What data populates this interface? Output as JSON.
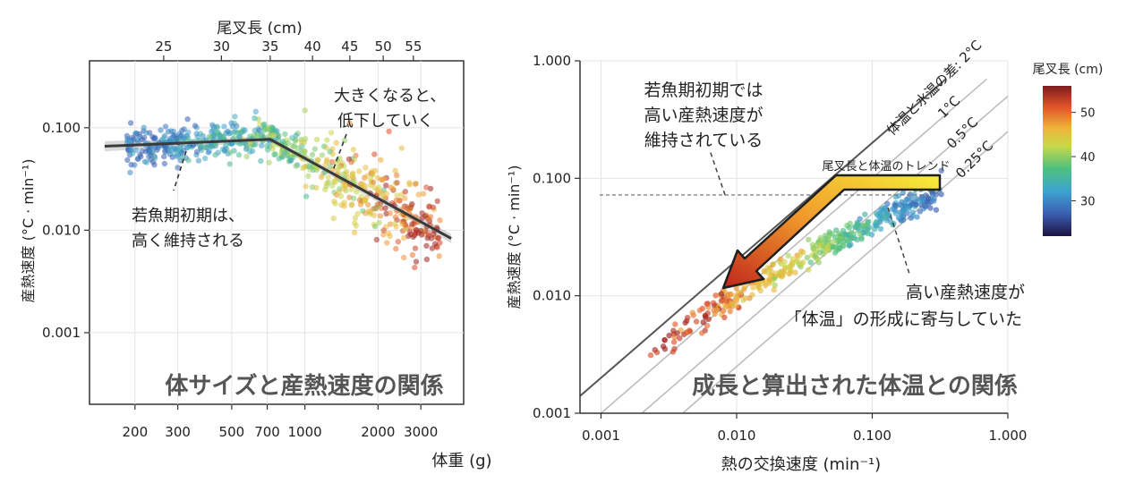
{
  "colors": {
    "trend_line": "#3a3a3a",
    "ci_band": "#b9b9b9",
    "grid": "#e4e4e4",
    "ref_line": "#bdbdbd",
    "text": "#222222",
    "title": "#555555",
    "arrow_start": "#f2df2a",
    "arrow_end": "#c0261c"
  },
  "chart_data": [
    {
      "type": "scatter",
      "title": "体サイズと産熱速度の関係",
      "xlabel": "体重 (g)",
      "ylabel": "産熱速度 (°C · min⁻¹)",
      "top_xlabel": "尾叉長 (cm)",
      "x_scale": "log",
      "y_scale": "log",
      "xlim": [
        130,
        4500
      ],
      "ylim": [
        0.0002,
        0.45
      ],
      "x_ticks": [
        200,
        300,
        500,
        700,
        1000,
        2000,
        3000
      ],
      "x_tick_labels": [
        "200",
        "300",
        "500",
        "700",
        "1000",
        "2000",
        "3000"
      ],
      "y_ticks": [
        0.001,
        0.01,
        0.1
      ],
      "y_tick_labels": [
        "0.001",
        "0.010",
        "0.100"
      ],
      "top_ticks": [
        25,
        30,
        35,
        40,
        45,
        50,
        55
      ],
      "top_tick_labels": [
        "25",
        "30",
        "35",
        "40",
        "45",
        "50",
        "55"
      ],
      "grid": true,
      "segmented_fit": [
        {
          "x": 150,
          "y": 0.066
        },
        {
          "x": 720,
          "y": 0.077
        },
        {
          "x": 4000,
          "y": 0.0083
        }
      ],
      "ci_band_width": [
        0.02,
        0.01,
        0.018
      ],
      "points_note": "approx. 700 individual fish, coloured by fork length",
      "annotations": [
        {
          "text": "若魚期初期は、",
          "line": 1
        },
        {
          "text": "高く維持される",
          "line": 2
        },
        {
          "text": "大きくなると、",
          "line": 1
        },
        {
          "text": "低下していく",
          "line": 2
        }
      ]
    },
    {
      "type": "scatter",
      "title": "成長と算出された体温との関係",
      "xlabel": "熱の交換速度 (min⁻¹)",
      "ylabel": "産熱速度 (°C · min⁻¹)",
      "x_scale": "log",
      "y_scale": "log",
      "xlim": [
        0.0007,
        1.0
      ],
      "ylim": [
        0.001,
        1.0
      ],
      "x_ticks": [
        0.001,
        0.01,
        0.1,
        1.0
      ],
      "x_tick_labels": [
        "0.001",
        "0.010",
        "0.100",
        "1.000"
      ],
      "y_ticks": [
        0.001,
        0.01,
        0.1,
        1.0
      ],
      "y_tick_labels": [
        "0.001",
        "0.010",
        "0.100",
        "1.000"
      ],
      "grid": true,
      "reference_lines": [
        {
          "label": "体温と水温の差: 2°C",
          "delta": 2
        },
        {
          "label": "1°C",
          "delta": 1
        },
        {
          "label": "0.5°C",
          "delta": 0.5
        },
        {
          "label": "0.25°C",
          "delta": 0.25
        }
      ],
      "dashed_reference_y": 0.07,
      "trend_arrow": {
        "label": "尾叉長と体温のトレンド"
      },
      "colorbar": {
        "title": "尾叉長 (cm)",
        "ticks": [
          30,
          40,
          50
        ],
        "range": [
          22,
          56
        ]
      },
      "annotations": [
        {
          "text": "若魚期初期では"
        },
        {
          "text": "高い産熱速度が"
        },
        {
          "text": "維持されている"
        },
        {
          "text": "高い産熱速度が"
        },
        {
          "text": "「体温」の形成に寄与していた"
        }
      ]
    }
  ],
  "labels": {
    "left_title": "体サイズと産熱速度の関係",
    "right_title": "成長と算出された体温との関係",
    "left_xlabel": "体重 (g)",
    "top_xlabel": "尾叉長 (cm)",
    "left_ylabel": "産熱速度 (°C · min⁻¹)",
    "right_xlabel": "熱の交換速度 (min⁻¹)",
    "right_ylabel": "産熱速度 (°C · min⁻¹)",
    "ann_left_1a": "若魚期初期は、",
    "ann_left_1b": "高く維持される",
    "ann_left_2a": "大きくなると、",
    "ann_left_2b": "低下していく",
    "ann_right_1a": "若魚期初期では",
    "ann_right_1b": "高い産熱速度が",
    "ann_right_1c": "維持されている",
    "ann_right_2a": "高い産熱速度が",
    "ann_right_2b": "「体温」の形成に寄与していた",
    "trend_label": "尾叉長と体温のトレンド",
    "colorbar_title": "尾叉長 (cm)",
    "ref_2": "体温と水温の差: 2°C",
    "ref_1": "1°C",
    "ref_05": "0.5°C",
    "ref_025": "0.25°C"
  }
}
